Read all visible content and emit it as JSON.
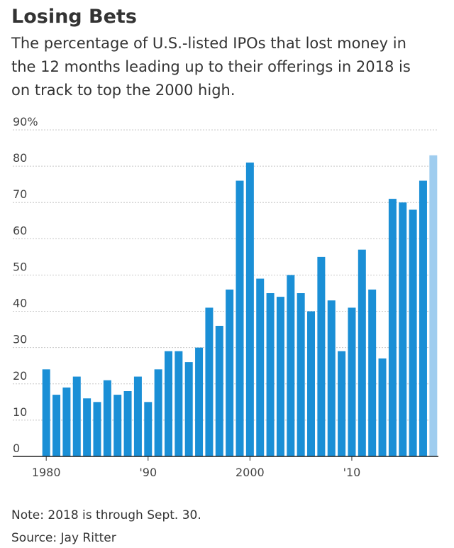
{
  "chart_data": {
    "type": "bar",
    "title": "Losing Bets",
    "subtitle": [
      "The percentage of U.S.-listed IPOs that lost money in",
      "the 12 months leading up to their offerings in 2018 is",
      "on track to top the 2000 high."
    ],
    "categories": [
      "1980",
      null,
      null,
      null,
      null,
      null,
      null,
      null,
      null,
      null,
      "'90",
      null,
      null,
      null,
      null,
      null,
      null,
      null,
      null,
      null,
      "2000",
      null,
      null,
      null,
      null,
      null,
      null,
      null,
      null,
      null,
      "'10",
      null,
      null,
      null,
      null,
      null,
      null,
      null,
      null
    ],
    "values": [
      24,
      17,
      19,
      22,
      16,
      15,
      21,
      17,
      18,
      22,
      15,
      24,
      29,
      29,
      26,
      30,
      41,
      36,
      46,
      76,
      81,
      49,
      45,
      44,
      50,
      45,
      40,
      55,
      43,
      29,
      41,
      57,
      46,
      27,
      71,
      70,
      68,
      76,
      83
    ],
    "color": "#1a8fd6",
    "colors": [
      "#1a8fd6",
      "#1a8fd6",
      "#1a8fd6",
      "#1a8fd6",
      "#1a8fd6",
      "#1a8fd6",
      "#1a8fd6",
      "#1a8fd6",
      "#1a8fd6",
      "#1a8fd6",
      "#1a8fd6",
      "#1a8fd6",
      "#1a8fd6",
      "#1a8fd6",
      "#1a8fd6",
      "#1a8fd6",
      "#1a8fd6",
      "#1a8fd6",
      "#1a8fd6",
      "#1a8fd6",
      "#1a8fd6",
      "#1a8fd6",
      "#1a8fd6",
      "#1a8fd6",
      "#1a8fd6",
      "#1a8fd6",
      "#1a8fd6",
      "#1a8fd6",
      "#1a8fd6",
      "#1a8fd6",
      "#1a8fd6",
      "#1a8fd6",
      "#1a8fd6",
      "#1a8fd6",
      "#1a8fd6",
      "#1a8fd6",
      "#1a8fd6",
      "#1a8fd6",
      "#9fcdef"
    ],
    "ylim": [
      0,
      90
    ],
    "yticks": [
      0,
      10,
      20,
      30,
      40,
      50,
      60,
      70,
      80,
      {
        "value": 90,
        "label": "90%"
      }
    ],
    "grid": true,
    "notes": [
      "Note: 2018 is through Sept. 30.",
      "Source: Jay Ritter"
    ]
  }
}
